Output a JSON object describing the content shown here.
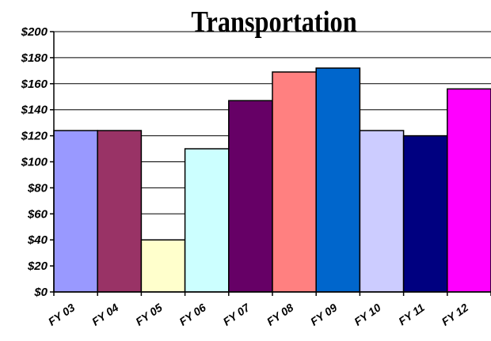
{
  "chart_data": {
    "type": "bar",
    "title": "Transportation",
    "xlabel": "",
    "ylabel": "",
    "ylim": [
      0,
      200
    ],
    "ytick_step": 20,
    "ytick_prefix": "$",
    "grid": true,
    "legend": "none",
    "categories": [
      "FY 03",
      "FY 04",
      "FY 05",
      "FY 06",
      "FY 07",
      "FY 08",
      "FY 09",
      "FY 10",
      "FY 11",
      "FY 12"
    ],
    "values": [
      124,
      124,
      40,
      110,
      147,
      169,
      172,
      124,
      120,
      156
    ],
    "colors": [
      "#9999ff",
      "#993366",
      "#ffffcc",
      "#ccffff",
      "#660066",
      "#ff8080",
      "#0066cc",
      "#ccccff",
      "#000080",
      "#ff00ff"
    ]
  }
}
